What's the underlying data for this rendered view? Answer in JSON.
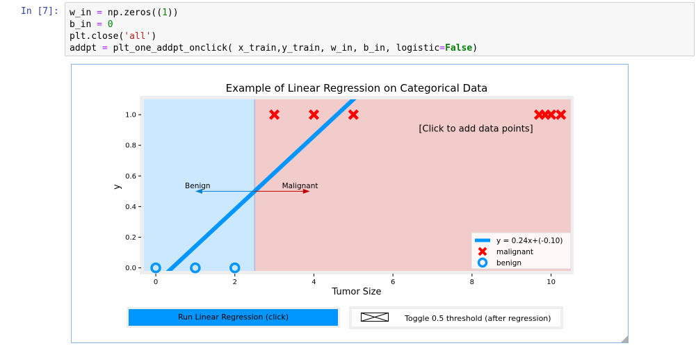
{
  "cell": {
    "prompt": "In [7]:",
    "code_lines": [
      "w_in = np.zeros((1))",
      "b_in = 0",
      "plt.close('all')",
      "addpt = plt_one_addpt_onclick( x_train,y_train, w_in, b_in, logistic=False)"
    ]
  },
  "chart_data": {
    "type": "scatter",
    "title": "Example of Linear Regression on Categorical Data",
    "xlabel": "Tumor Size",
    "ylabel": "y",
    "xlim": [
      -0.3,
      10.5
    ],
    "ylim": [
      -0.02,
      1.1
    ],
    "xticks": [
      0,
      2,
      4,
      6,
      8,
      10
    ],
    "yticks": [
      0.0,
      0.2,
      0.4,
      0.6,
      0.8,
      1.0
    ],
    "threshold_x": 2.5,
    "regions": [
      {
        "name": "benign",
        "color": "#cce8ff"
      },
      {
        "name": "malignant",
        "color": "#f2cbcb"
      }
    ],
    "series": [
      {
        "name": "malignant",
        "marker": "x",
        "color": "#ff0000",
        "x": [
          3,
          4,
          5,
          9.7,
          9.85,
          10,
          10.25
        ],
        "y": [
          1,
          1,
          1,
          1,
          1,
          1,
          1
        ]
      },
      {
        "name": "benign",
        "marker": "o",
        "color": "#0096ff",
        "x": [
          0,
          1,
          2
        ],
        "y": [
          0,
          0,
          0
        ]
      }
    ],
    "line": {
      "name": "y = 0.24x+(-0.10)",
      "slope": 0.24,
      "intercept": -0.1,
      "color": "#0096ff"
    },
    "annotations": [
      {
        "text": "Benign",
        "x": 1.06,
        "y": 0.52,
        "arrow_to": [
          1.0,
          0.5
        ],
        "arrow_from": [
          2.5,
          0.5
        ],
        "color": "#0080d0"
      },
      {
        "text": "Malignant",
        "x": 3.65,
        "y": 0.52,
        "arrow_from": [
          2.5,
          0.5
        ],
        "arrow_to": [
          3.9,
          0.5
        ],
        "color": "#c00000"
      },
      {
        "text": "[Click to add data points]",
        "x": 8.1,
        "y": 0.89
      }
    ],
    "legend": {
      "placement": "lower-right",
      "entries": [
        "y = 0.24x+(-0.10)",
        "malignant",
        "benign"
      ]
    }
  },
  "controls": {
    "run_button": "Run Linear Regression (click)",
    "toggle_button": "Toggle 0.5 threshold (after regression)"
  }
}
